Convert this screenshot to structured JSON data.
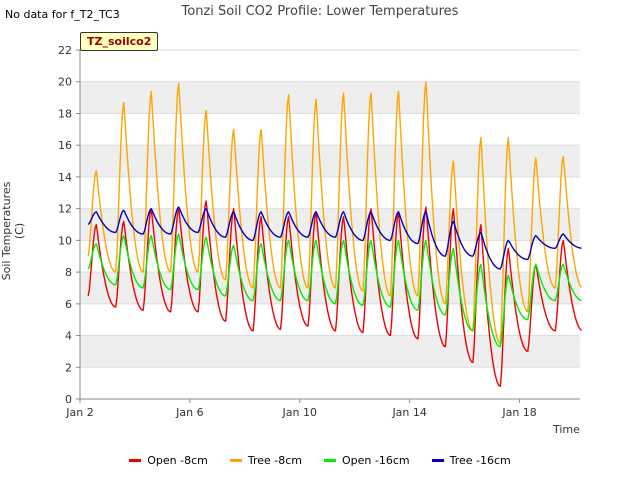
{
  "header": {
    "no_data": "No data for f_T2_TC3",
    "title": "Tonzi Soil CO2 Profile: Lower Temperatures",
    "badge": "TZ_soilco2"
  },
  "chart_data": {
    "type": "line",
    "title": "Tonzi Soil CO2 Profile: Lower Temperatures",
    "xlabel": "Time",
    "ylabel": "Soil Temperatures (C)",
    "xlim": [
      2,
      20.2
    ],
    "ylim": [
      0,
      22
    ],
    "yticks": [
      0,
      2,
      4,
      6,
      8,
      10,
      12,
      14,
      16,
      18,
      20,
      22
    ],
    "xticks": [
      {
        "x": 2,
        "label": "Jan 2"
      },
      {
        "x": 6,
        "label": "Jan 6"
      },
      {
        "x": 10,
        "label": "Jan 10"
      },
      {
        "x": 14,
        "label": "Jan 14"
      },
      {
        "x": 18,
        "label": "Jan 18"
      }
    ],
    "grid": true,
    "legend_position": "bottom",
    "days": [
      2.3,
      3.3,
      4.3,
      5.3,
      6.3,
      7.3,
      8.3,
      9.3,
      10.3,
      11.3,
      12.3,
      13.3,
      14.3,
      15.3,
      16.3,
      17.3,
      18.3,
      19.3
    ],
    "series": [
      {
        "name": "Open -8cm",
        "color": "#ee0000",
        "min": [
          6.5,
          5.8,
          5.6,
          5.5,
          5.5,
          4.9,
          4.3,
          4.4,
          4.6,
          4.3,
          4.2,
          4.0,
          3.8,
          3.3,
          2.3,
          0.8,
          3.0,
          4.3
        ],
        "max": [
          11.0,
          11.2,
          12.0,
          12.0,
          12.5,
          12.0,
          11.5,
          11.5,
          11.8,
          11.5,
          12.0,
          11.8,
          12.1,
          12.0,
          11.0,
          9.5,
          8.5,
          10.0
        ]
      },
      {
        "name": "Tree -8cm",
        "color": "#ffa500",
        "min": [
          9.0,
          8.0,
          8.0,
          8.0,
          8.0,
          7.5,
          7.0,
          7.0,
          7.0,
          7.0,
          6.8,
          6.5,
          6.5,
          6.0,
          4.3,
          3.5,
          5.5,
          7.0
        ],
        "max": [
          14.4,
          18.7,
          19.4,
          19.9,
          18.2,
          17.0,
          17.0,
          19.2,
          18.9,
          19.3,
          19.3,
          19.4,
          20.0,
          15.0,
          16.5,
          16.5,
          15.2,
          15.3
        ]
      },
      {
        "name": "Open -16cm",
        "color": "#00ee00",
        "min": [
          8.2,
          7.2,
          7.0,
          6.9,
          6.9,
          6.5,
          6.2,
          6.2,
          6.2,
          6.0,
          5.9,
          5.8,
          5.6,
          5.3,
          4.3,
          3.3,
          5.0,
          6.2
        ],
        "max": [
          9.8,
          10.3,
          10.3,
          10.4,
          10.2,
          9.7,
          9.8,
          10.0,
          10.0,
          10.0,
          10.0,
          10.0,
          10.0,
          9.5,
          8.5,
          7.8,
          8.5,
          8.5
        ]
      },
      {
        "name": "Tree -16cm",
        "color": "#0000cc",
        "min": [
          11.0,
          10.5,
          10.4,
          10.4,
          10.5,
          10.2,
          10.0,
          10.2,
          10.2,
          10.2,
          10.0,
          10.0,
          9.8,
          9.0,
          9.0,
          8.2,
          8.8,
          9.5
        ],
        "max": [
          11.8,
          11.9,
          12.0,
          12.1,
          12.0,
          11.8,
          11.8,
          11.8,
          11.8,
          11.8,
          11.8,
          11.8,
          11.8,
          11.2,
          10.5,
          10.0,
          10.3,
          10.4
        ]
      }
    ]
  }
}
